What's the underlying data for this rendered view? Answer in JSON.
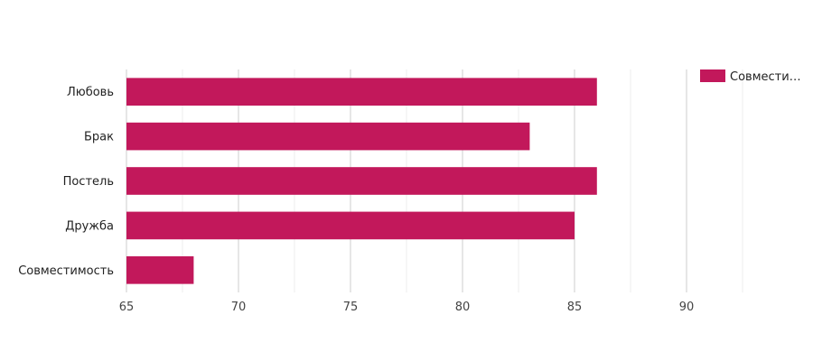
{
  "chart_data": {
    "type": "bar",
    "orientation": "horizontal",
    "categories": [
      "Любовь",
      "Брак",
      "Постель",
      "Дружба",
      "Совместимость"
    ],
    "series": [
      {
        "name": "Совмести…",
        "values": [
          86,
          83,
          86,
          85,
          68
        ],
        "color": "#c2185b"
      }
    ],
    "xlim": [
      65,
      90
    ],
    "xticks": [
      65,
      70,
      75,
      80,
      85,
      90
    ],
    "grid": true,
    "legend": "top-right"
  }
}
